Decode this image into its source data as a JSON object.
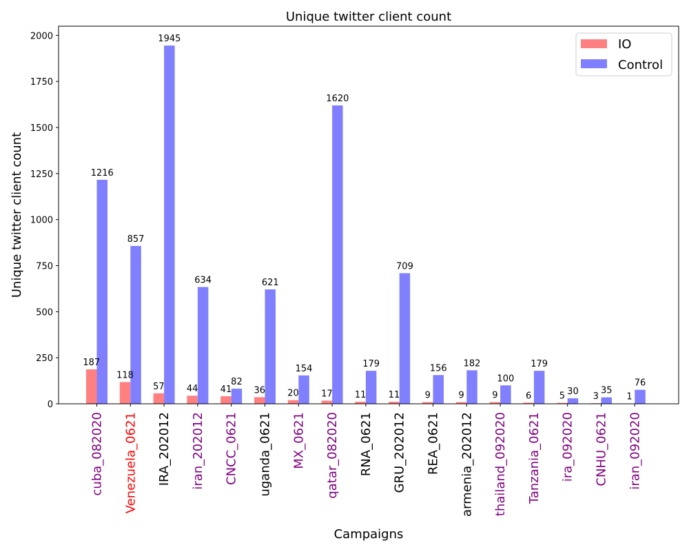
{
  "chart_data": {
    "type": "bar",
    "title": "Unique twitter client count",
    "xlabel": "Campaigns",
    "ylabel": "Unique twitter client count",
    "ylim": [
      0,
      2050
    ],
    "yticks": [
      0,
      250,
      500,
      750,
      1000,
      1250,
      1500,
      1750,
      2000
    ],
    "grid": false,
    "legend_position": "top-right",
    "categories": [
      "cuba_082020",
      "Venezuela_0621",
      "IRA_202012",
      "iran_202012",
      "CNCC_0621",
      "uganda_0621",
      "MX_0621",
      "qatar_082020",
      "RNA_0621",
      "GRU_202012",
      "REA_0621",
      "armenia_202012",
      "thailand_092020",
      "Tanzania_0621",
      "ira_092020",
      "CNHU_0621",
      "iran_092020"
    ],
    "category_colors": [
      "#800080",
      "#ff0000",
      "#000000",
      "#800080",
      "#800080",
      "#000000",
      "#800080",
      "#800080",
      "#000000",
      "#000000",
      "#000000",
      "#000000",
      "#800080",
      "#800080",
      "#800080",
      "#800080",
      "#800080"
    ],
    "series": [
      {
        "name": "IO",
        "color": "#ff8080",
        "values": [
          187,
          118,
          57,
          44,
          41,
          36,
          20,
          17,
          11,
          11,
          9,
          9,
          9,
          6,
          5,
          3,
          1
        ]
      },
      {
        "name": "Control",
        "color": "#8080ff",
        "values": [
          1216,
          857,
          1945,
          634,
          82,
          621,
          154,
          1620,
          179,
          709,
          156,
          182,
          100,
          179,
          30,
          35,
          76
        ]
      }
    ]
  }
}
